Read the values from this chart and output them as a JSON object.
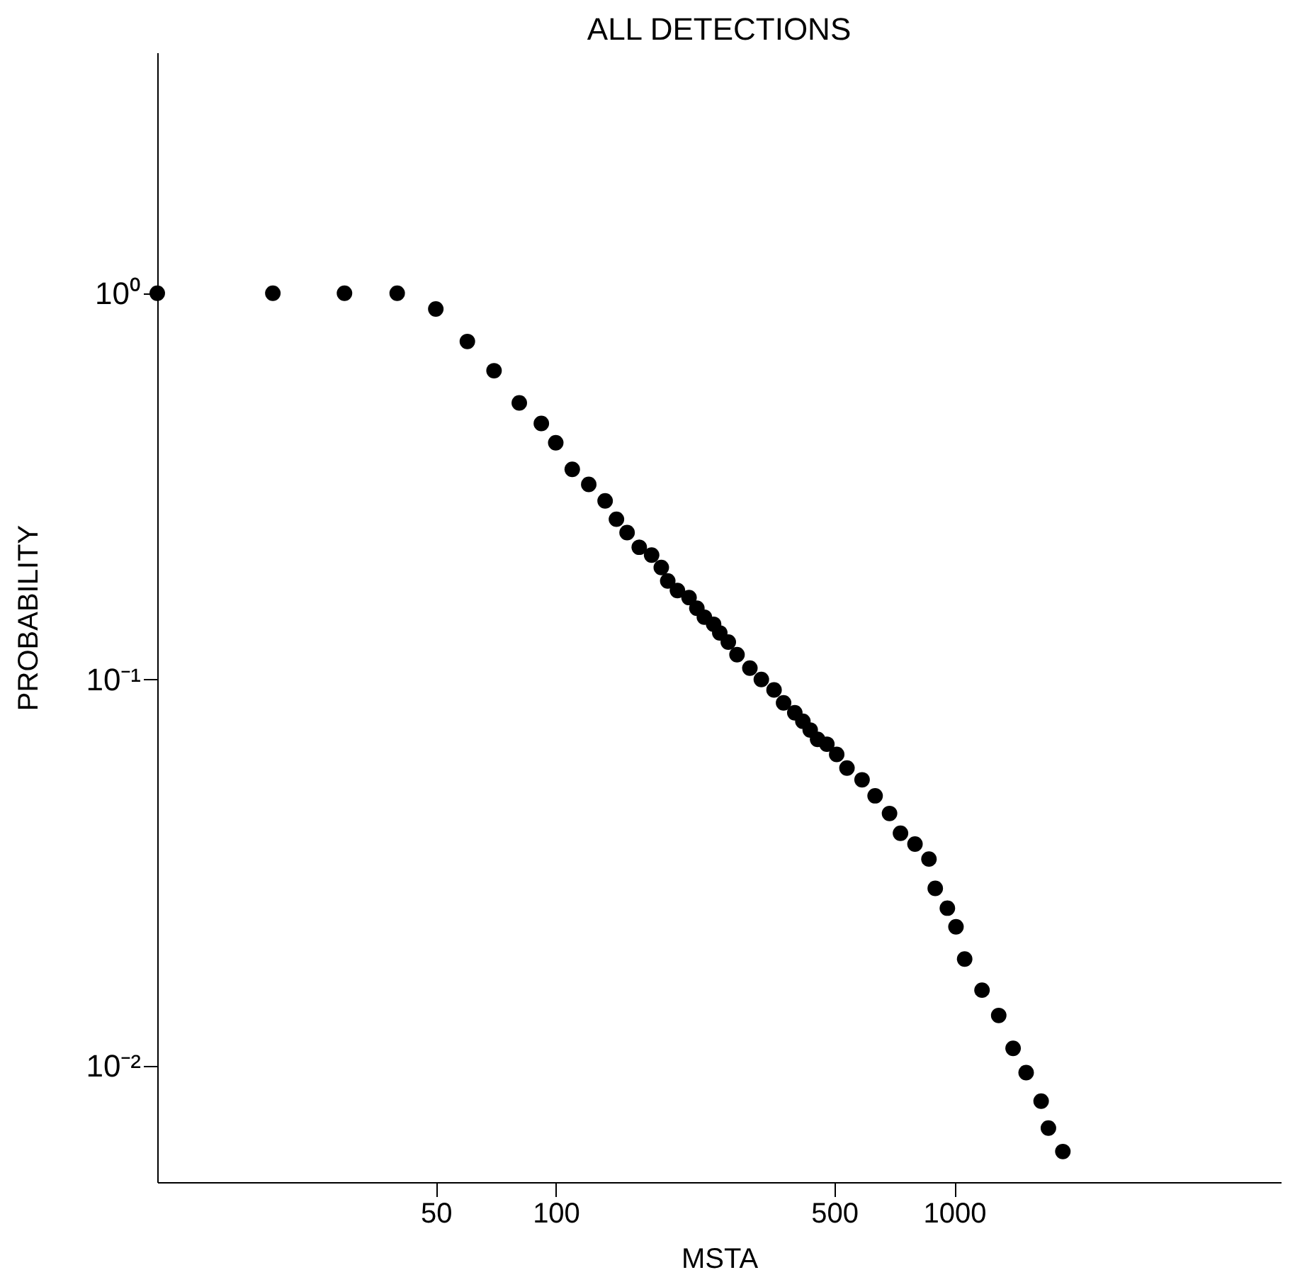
{
  "chart_data": {
    "type": "scatter",
    "title": "ALL DETECTIONS",
    "xlabel": "MSTA",
    "ylabel": "PROBABILITY",
    "log": "xy",
    "marker": "circle",
    "grid": false,
    "xlim": [
      10,
      6600
    ],
    "ylim": [
      0.005,
      4.2
    ],
    "xticks": [
      50,
      100,
      500,
      1000
    ],
    "yticks": [
      {
        "value": 1,
        "label": "10⁰"
      },
      {
        "value": 0.1,
        "label": "10⁻¹"
      },
      {
        "value": 0.01,
        "label": "10⁻²"
      }
    ],
    "series": [
      {
        "color": "#000000",
        "x": [
          10,
          19.5,
          29.5,
          40,
          50,
          60,
          70,
          81,
          92,
          100,
          110,
          121,
          133,
          142,
          151,
          162,
          174,
          184,
          191,
          202,
          216,
          226,
          236,
          249,
          258,
          271,
          285,
          307,
          328,
          353,
          373,
          398,
          417,
          435,
          454,
          479,
          507,
          538,
          587,
          633,
          688,
          733,
          797,
          864,
          896,
          961,
          1010,
          1062,
          1174,
          1293,
          1405,
          1515,
          1652,
          1723,
          1873
        ],
        "values": [
          1.0,
          1.0,
          1.0,
          1.0,
          0.91,
          0.75,
          0.63,
          0.52,
          0.46,
          0.41,
          0.35,
          0.32,
          0.29,
          0.26,
          0.24,
          0.22,
          0.21,
          0.195,
          0.18,
          0.17,
          0.163,
          0.153,
          0.145,
          0.139,
          0.132,
          0.125,
          0.116,
          0.107,
          0.1,
          0.094,
          0.087,
          0.082,
          0.078,
          0.074,
          0.07,
          0.068,
          0.064,
          0.059,
          0.055,
          0.05,
          0.045,
          0.04,
          0.0375,
          0.0343,
          0.0288,
          0.0256,
          0.0229,
          0.0189,
          0.0157,
          0.0135,
          0.0111,
          0.0096,
          0.0081,
          0.0069,
          0.006
        ]
      }
    ]
  }
}
